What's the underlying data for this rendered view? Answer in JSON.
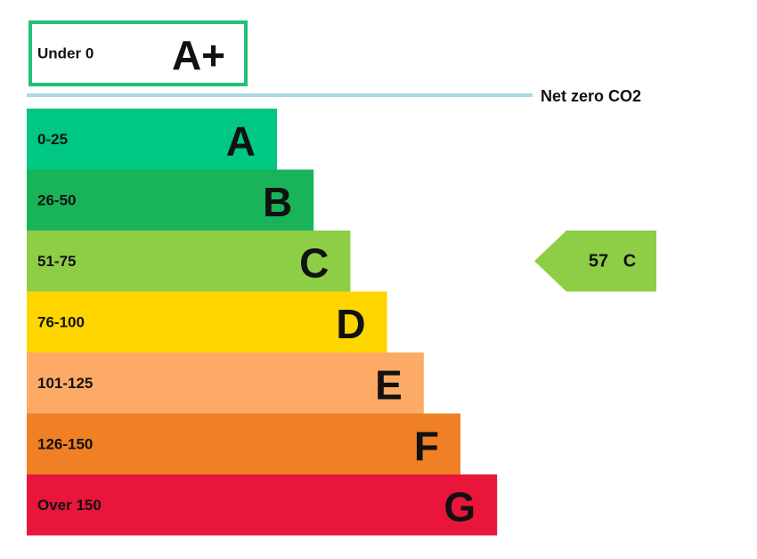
{
  "top_band": {
    "range": "Under 0",
    "letter": "A+",
    "color": "#22c07a"
  },
  "net_zero_label": "Net zero CO2",
  "bands": [
    {
      "range": "0-25",
      "letter": "A",
      "color": "#00c781"
    },
    {
      "range": "26-50",
      "letter": "B",
      "color": "#19b459"
    },
    {
      "range": "51-75",
      "letter": "C",
      "color": "#8dce46"
    },
    {
      "range": "76-100",
      "letter": "D",
      "color": "#ffd500"
    },
    {
      "range": "101-125",
      "letter": "E",
      "color": "#fcaa65"
    },
    {
      "range": "126-150",
      "letter": "F",
      "color": "#ef8023"
    },
    {
      "range": "Over 150",
      "letter": "G",
      "color": "#e9153b"
    }
  ],
  "indicator": {
    "score": "57",
    "letter": "C"
  }
}
